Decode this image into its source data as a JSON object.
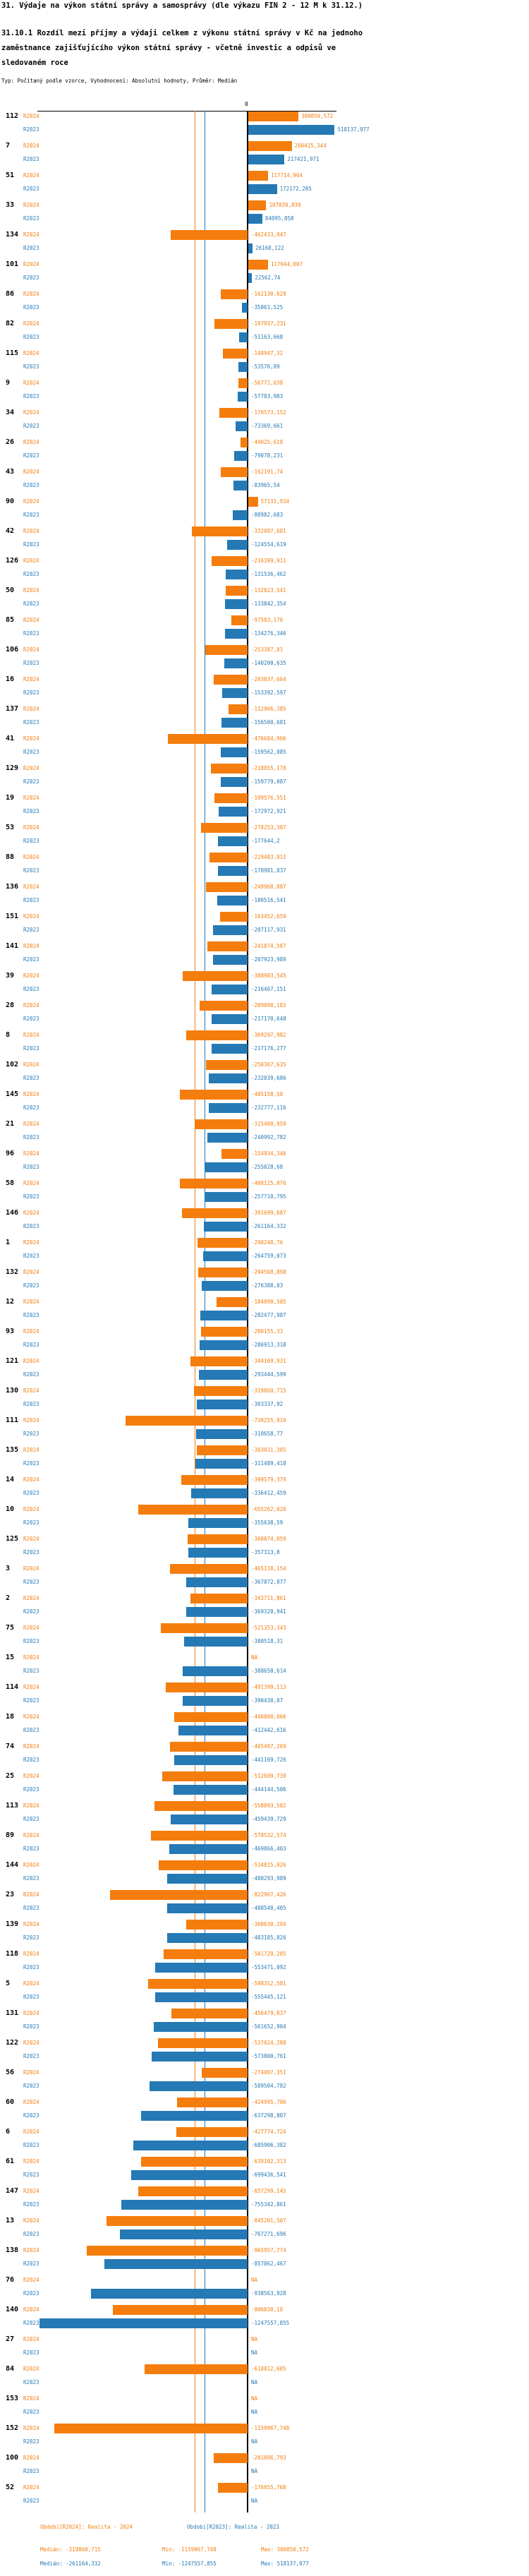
{
  "title": "31. Výdaje na výkon státní správy a samosprávy (dle výkazu FIN 2 - 12 M k 31.12.)",
  "subtitle": "31.10.1 Rozdíl mezi příjmy a výdaji celkem z výkonu státní správy v Kč na jednoho zaměstnance zajišťujícího výkon státní správy - včetně investic a odpisů ve sledovaném roce",
  "meta": "Typ: Počítaný podle vzorce, Vyhodnocení: Absolutní hodnoty, Průměr: Medián",
  "na_label": "NA",
  "legend": {
    "r2024_period": "Období[R2024]: Realita - 2024",
    "r2023_period": "Období[R2023]: Realita - 2023",
    "r2024_median": "Medián: -319860,715",
    "r2024_min": "Min: -1159967,748",
    "r2024_max": "Max: 300850,572",
    "r2023_median": "Medián: -261164,332",
    "r2023_min": "Min: -1247557,855",
    "r2023_max": "Max: 518137,977"
  },
  "chart_data": {
    "type": "bar",
    "orientation": "horizontal",
    "value_axis": {
      "zero_tick": "0",
      "xlim": [
        -1300000,
        560000
      ],
      "grid": false
    },
    "legend_position": "bottom",
    "series_meta": [
      {
        "name": "R2024",
        "period": "Realita - 2024",
        "color": "#f57d0d",
        "median": -319860.715,
        "min": -1159967.748,
        "max": 300850.572
      },
      {
        "name": "R2023",
        "period": "Realita - 2023",
        "color": "#2579b5",
        "median": -261164.332,
        "min": -1247557.855,
        "max": 518137.977
      }
    ],
    "rows": [
      {
        "category": "112",
        "R2024": 300850.572,
        "R2023": 518137.977
      },
      {
        "category": "7",
        "R2024": 260415.344,
        "R2023": 217421.971
      },
      {
        "category": "51",
        "R2024": 117714.964,
        "R2023": 172172.285
      },
      {
        "category": "33",
        "R2024": 107839.039,
        "R2023": 84095.058
      },
      {
        "category": "134",
        "R2024": -462433.947,
        "R2023": 26168.122
      },
      {
        "category": "101",
        "R2024": 117944.007,
        "R2023": 22562.74
      },
      {
        "category": "86",
        "R2024": -162130.629,
        "R2023": -35061.525
      },
      {
        "category": "82",
        "R2024": -197937.231,
        "R2023": -51163.668
      },
      {
        "category": "115",
        "R2024": -148947.32,
        "R2023": -53576.89
      },
      {
        "category": "9",
        "R2024": -56771.038,
        "R2023": -57783.983
      },
      {
        "category": "34",
        "R2024": -170573.152,
        "R2023": -73369.661
      },
      {
        "category": "26",
        "R2024": -44025.618,
        "R2023": -79078.231
      },
      {
        "category": "43",
        "R2024": -162191.74,
        "R2023": -83965.54
      },
      {
        "category": "90",
        "R2024": 57131.934,
        "R2023": -88982.683
      },
      {
        "category": "42",
        "R2024": -332097.681,
        "R2023": -124554.619
      },
      {
        "category": "126",
        "R2024": -216399.911,
        "R2023": -131536.462
      },
      {
        "category": "50",
        "R2024": -132823.541,
        "R2023": -133842.354
      },
      {
        "category": "85",
        "R2024": -97583.176,
        "R2023": -134276.346
      },
      {
        "category": "106",
        "R2024": -253387.81,
        "R2023": -140200.635
      },
      {
        "category": "16",
        "R2024": -203037.664,
        "R2023": -153392.597
      },
      {
        "category": "137",
        "R2024": -112966.385,
        "R2023": -156500.681
      },
      {
        "category": "41",
        "R2024": -476684.966,
        "R2023": -159562.085
      },
      {
        "category": "129",
        "R2024": -218855.178,
        "R2023": -159779.087
      },
      {
        "category": "19",
        "R2024": -199576.551,
        "R2023": -172972.921
      },
      {
        "category": "53",
        "R2024": -278253.307,
        "R2023": -177644.2
      },
      {
        "category": "88",
        "R2024": -229483.011,
        "R2023": -178981.837
      },
      {
        "category": "136",
        "R2024": -248968.887,
        "R2023": -180516.541
      },
      {
        "category": "151",
        "R2024": -163452.659,
        "R2023": -207117.931
      },
      {
        "category": "141",
        "R2024": -241874.587,
        "R2023": -207923.989
      },
      {
        "category": "39",
        "R2024": -388983.545,
        "R2023": -216467.151
      },
      {
        "category": "28",
        "R2024": -289098.183,
        "R2023": -217170.648
      },
      {
        "category": "8",
        "R2024": -369297.982,
        "R2023": -217176.277
      },
      {
        "category": "102",
        "R2024": -250367.635,
        "R2023": -232039.686
      },
      {
        "category": "145",
        "R2024": -405158.58,
        "R2023": -232777.116
      },
      {
        "category": "21",
        "R2024": -315400.959,
        "R2023": -240992.782
      },
      {
        "category": "96",
        "R2024": -154934.346,
        "R2023": -255028.68
      },
      {
        "category": "58",
        "R2024": -408125.876,
        "R2023": -257710.795
      },
      {
        "category": "146",
        "R2024": -391699.687,
        "R2023": -261164.332
      },
      {
        "category": "1",
        "R2024": -298248.76,
        "R2023": -264759.073
      },
      {
        "category": "132",
        "R2024": -294508.898,
        "R2023": -276388.03
      },
      {
        "category": "12",
        "R2024": -184890.505,
        "R2023": -282477.987
      },
      {
        "category": "93",
        "R2024": -280155.33,
        "R2023": -286913.318
      },
      {
        "category": "121",
        "R2024": -344109.931,
        "R2023": -293444.599
      },
      {
        "category": "130",
        "R2024": -319860.715,
        "R2023": -303337.92
      },
      {
        "category": "111",
        "R2024": -730255.916,
        "R2023": -310658.77
      },
      {
        "category": "135",
        "R2024": -303011.305,
        "R2023": -311489.418
      },
      {
        "category": "14",
        "R2024": -399579.379,
        "R2023": -336412.459
      },
      {
        "category": "10",
        "R2024": -655262.026,
        "R2023": -355638.59
      },
      {
        "category": "125",
        "R2024": -360874.059,
        "R2023": -357313.8
      },
      {
        "category": "3",
        "R2024": -465110.154,
        "R2023": -367872.877
      },
      {
        "category": "2",
        "R2024": -343711.861,
        "R2023": -369320.941
      },
      {
        "category": "75",
        "R2024": -521353.343,
        "R2023": -380518.31
      },
      {
        "category": "15",
        "R2024": null,
        "R2023": -388650.614
      },
      {
        "category": "114",
        "R2024": -491399.113,
        "R2023": -390430.07
      },
      {
        "category": "18",
        "R2024": -440800.066,
        "R2023": -412442.616
      },
      {
        "category": "74",
        "R2024": -465497.269,
        "R2023": -441169.726
      },
      {
        "category": "25",
        "R2024": -512609.739,
        "R2023": -444144.506
      },
      {
        "category": "113",
        "R2024": -558893.502,
        "R2023": -459439.729
      },
      {
        "category": "89",
        "R2024": -578532.574,
        "R2023": -469866.403
      },
      {
        "category": "144",
        "R2024": -534815.026,
        "R2023": -480293.989
      },
      {
        "category": "23",
        "R2024": -822967.426,
        "R2023": -480548.405
      },
      {
        "category": "139",
        "R2024": -368630.294,
        "R2023": -483185.826
      },
      {
        "category": "118",
        "R2024": -501729.205,
        "R2023": -553471.092
      },
      {
        "category": "5",
        "R2024": -598352.581,
        "R2023": -555445.121
      },
      {
        "category": "131",
        "R2024": -456479.837,
        "R2023": -561652.904
      },
      {
        "category": "122",
        "R2024": -537024.288,
        "R2023": -573800.761
      },
      {
        "category": "56",
        "R2024": -274007.351,
        "R2023": -589504.782
      },
      {
        "category": "60",
        "R2024": -424995.706,
        "R2023": -637298.807
      },
      {
        "category": "6",
        "R2024": -427774.724,
        "R2023": -685906.382
      },
      {
        "category": "61",
        "R2024": -639102.313,
        "R2023": -699436.541
      },
      {
        "category": "147",
        "R2024": -657299.145,
        "R2023": -755342.861
      },
      {
        "category": "13",
        "R2024": -845201.507,
        "R2023": -767271.696
      },
      {
        "category": "138",
        "R2024": -965957.774,
        "R2023": -857862.467
      },
      {
        "category": "76",
        "R2024": null,
        "R2023": -938563.928
      },
      {
        "category": "140",
        "R2024": -806830.18,
        "R2023": -1247557.855
      },
      {
        "category": "27",
        "R2024": null,
        "R2023": null
      },
      {
        "category": "84",
        "R2024": -618812.605,
        "R2023": null
      },
      {
        "category": "153",
        "R2024": null,
        "R2023": null
      },
      {
        "category": "152",
        "R2024": -1159967.748,
        "R2023": null
      },
      {
        "category": "100",
        "R2024": -201896.793,
        "R2023": null
      },
      {
        "category": "52",
        "R2024": -176055.768,
        "R2023": null
      }
    ]
  }
}
